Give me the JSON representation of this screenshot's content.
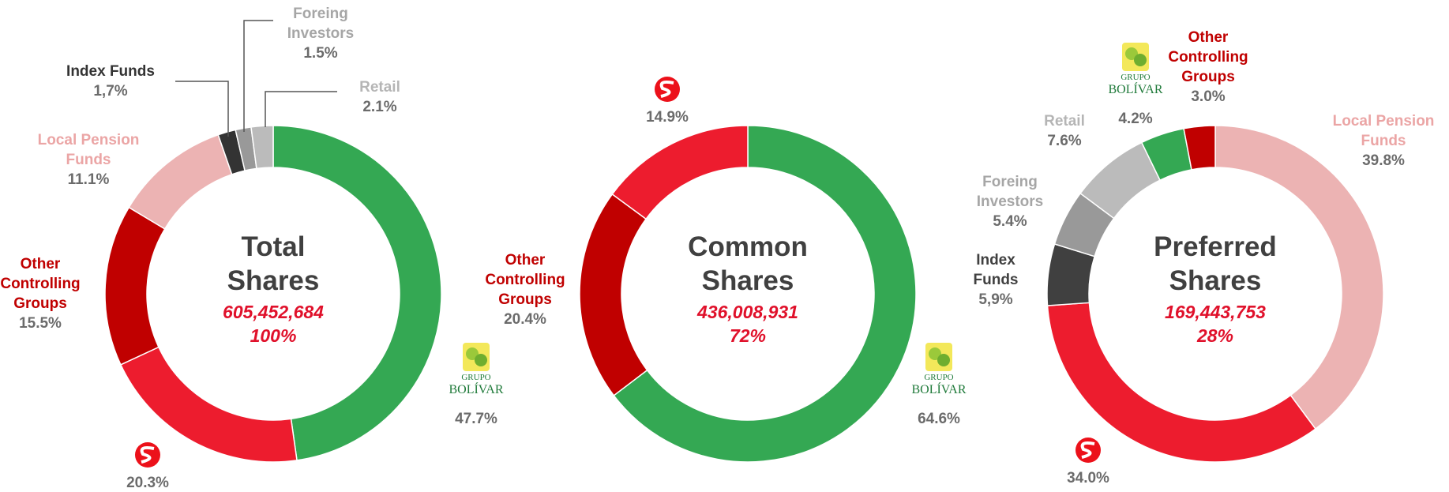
{
  "chart_data": [
    {
      "type": "pie",
      "title": "Total Shares",
      "annotations": [
        "605,452,684",
        "100%"
      ],
      "categories": [
        "GRUPO BOLÍVAR",
        null,
        "Other Controlling Groups",
        "Local Pension Funds",
        "Index Funds",
        "Foreing Investors",
        "Retail"
      ],
      "values": [
        47.7,
        20.3,
        15.5,
        11.1,
        1.7,
        1.5,
        2.1
      ],
      "value_labels": [
        "47.7%",
        "20.3%",
        "15.5%",
        "11.1%",
        "1,7%",
        "1.5%",
        "2.1%"
      ],
      "colors": [
        "#34a853",
        "#ed1c2e",
        "#c00000",
        "#ecb3b3",
        "#333333",
        "#999999",
        "#bbbbbb"
      ]
    },
    {
      "type": "pie",
      "title": "Common Shares",
      "annotations": [
        "436,008,931",
        "72%"
      ],
      "categories": [
        "GRUPO BOLÍVAR",
        "Other Controlling Groups",
        null
      ],
      "values": [
        64.6,
        20.4,
        14.9
      ],
      "value_labels": [
        "64.6%",
        "20.4%",
        "14.9%"
      ],
      "colors": [
        "#34a853",
        "#c00000",
        "#ed1c2e"
      ]
    },
    {
      "type": "pie",
      "title": "Preferred Shares",
      "annotations": [
        "169,443,753",
        "28%"
      ],
      "categories": [
        "Local Pension Funds",
        null,
        "Index Funds",
        "Foreing Investors",
        "Retail",
        "GRUPO BOLÍVAR",
        "Other Controlling Groups"
      ],
      "values": [
        39.8,
        34.0,
        5.9,
        5.4,
        7.6,
        4.2,
        3.0
      ],
      "value_labels": [
        "39.8%",
        "34.0%",
        "5,9%",
        "5.4%",
        "7.6%",
        "4.2%",
        "3.0%"
      ],
      "colors": [
        "#ecb3b3",
        "#ed1c2e",
        "#404040",
        "#999999",
        "#bbbbbb",
        "#34a853",
        "#c00000"
      ]
    }
  ]
}
